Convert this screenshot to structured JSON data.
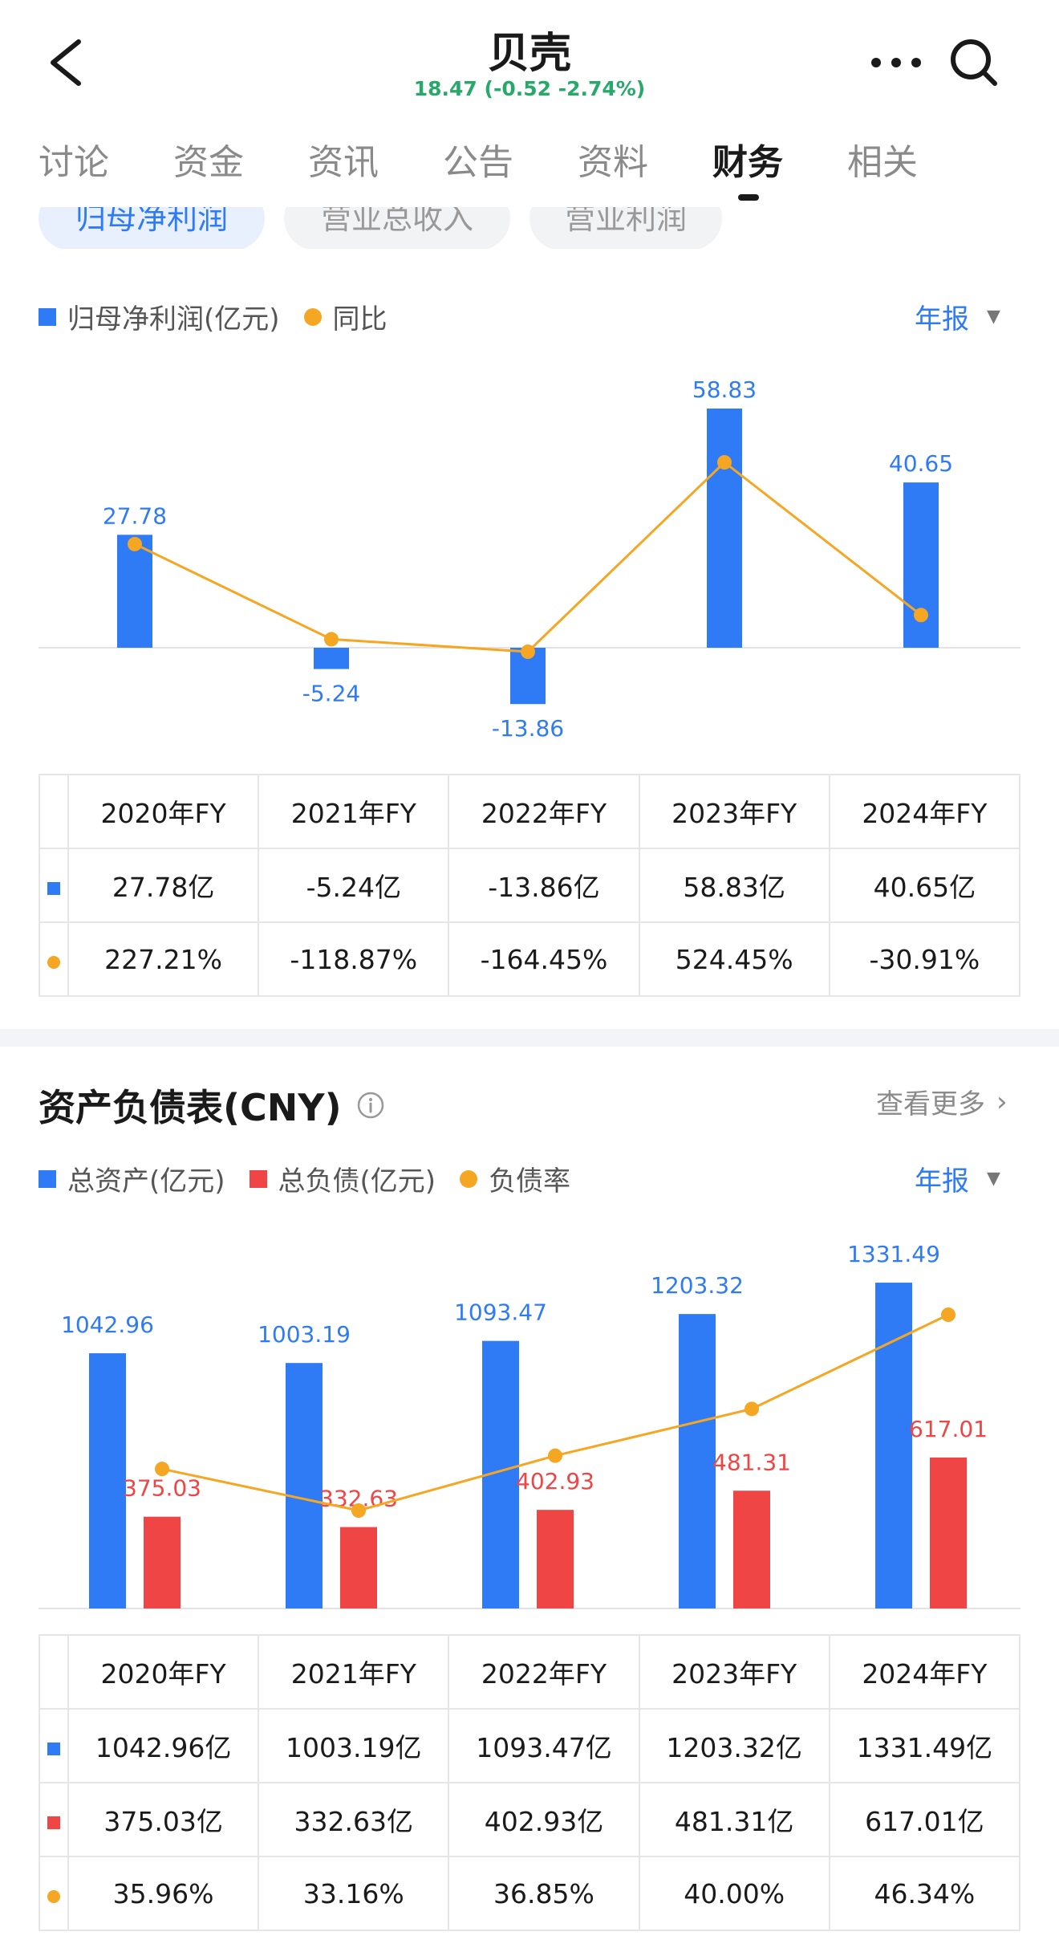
{
  "header": {
    "title": "贝壳",
    "quote": "18.47 (-0.52 -2.74%)"
  },
  "tabs": [
    {
      "label": "讨论"
    },
    {
      "label": "资金"
    },
    {
      "label": "资讯"
    },
    {
      "label": "公告"
    },
    {
      "label": "资料"
    },
    {
      "label": "财务"
    },
    {
      "label": "相关"
    }
  ],
  "active_tab": "财务",
  "subtabs": [
    "归母净利润",
    "营业总收入",
    "营业利润"
  ],
  "profit": {
    "legend": [
      "归母净利润(亿元)",
      "同比"
    ],
    "period": "年报",
    "columns": [
      "2020年FY",
      "2021年FY",
      "2022年FY",
      "2023年FY",
      "2024年FY"
    ],
    "row_values": [
      "27.78亿",
      "-5.24亿",
      "-13.86亿",
      "58.83亿",
      "40.65亿"
    ],
    "row_yoy": [
      "227.21%",
      "-118.87%",
      "-164.45%",
      "524.45%",
      "-30.91%"
    ]
  },
  "balance": {
    "title": "资产负债表(CNY)",
    "see_more": "查看更多",
    "legend": [
      "总资产(亿元)",
      "总负债(亿元)",
      "负债率"
    ],
    "period": "年报",
    "columns": [
      "2020年FY",
      "2021年FY",
      "2022年FY",
      "2023年FY",
      "2024年FY"
    ],
    "row_assets": [
      "1042.96亿",
      "1003.19亿",
      "1093.47亿",
      "1203.32亿",
      "1331.49亿"
    ],
    "row_liabilities": [
      "375.03亿",
      "332.63亿",
      "402.93亿",
      "481.31亿",
      "617.01亿"
    ],
    "row_ratio": [
      "35.96%",
      "33.16%",
      "36.85%",
      "40.00%",
      "46.34%"
    ]
  },
  "colors": {
    "blue": "#2f7bf5",
    "red": "#ef4545",
    "orange": "#f5a623",
    "up": "#ef3f3f",
    "down": "#27a96a"
  },
  "chart_data": [
    {
      "type": "bar",
      "categories": [
        "2020年FY",
        "2021年FY",
        "2022年FY",
        "2023年FY",
        "2024年FY"
      ],
      "series": [
        {
          "name": "归母净利润(亿元)",
          "type": "bar",
          "values": [
            27.78,
            -5.24,
            -13.86,
            58.83,
            40.65
          ],
          "labels": [
            "27.78",
            "-5.24",
            "-13.86",
            "58.83",
            "40.65"
          ]
        },
        {
          "name": "同比",
          "type": "line",
          "values": [
            227.21,
            -118.87,
            -164.45,
            524.45,
            -30.91
          ]
        }
      ]
    },
    {
      "type": "bar",
      "categories": [
        "2020年FY",
        "2021年FY",
        "2022年FY",
        "2023年FY",
        "2024年FY"
      ],
      "series": [
        {
          "name": "总资产(亿元)",
          "type": "bar",
          "values": [
            1042.96,
            1003.19,
            1093.47,
            1203.32,
            1331.49
          ],
          "labels": [
            "1042.96",
            "1003.19",
            "1093.47",
            "1203.32",
            "1331.49"
          ]
        },
        {
          "name": "总负债(亿元)",
          "type": "bar",
          "values": [
            375.03,
            332.63,
            402.93,
            481.31,
            617.01
          ],
          "labels": [
            "375.03",
            "332.63",
            "402.93",
            "481.31",
            "617.01"
          ]
        },
        {
          "name": "负债率",
          "type": "line",
          "values": [
            35.96,
            33.16,
            36.85,
            40.0,
            46.34
          ]
        }
      ]
    }
  ]
}
